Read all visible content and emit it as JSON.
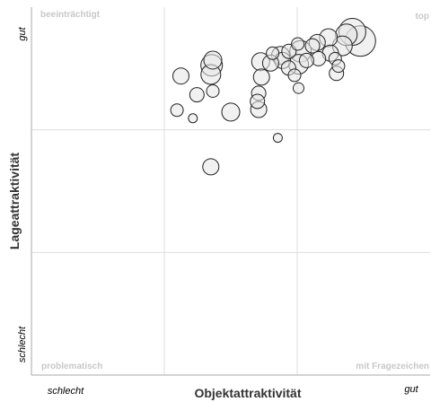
{
  "chart_data": {
    "type": "scatter",
    "title": "",
    "xlabel": "Objektattraktivität",
    "ylabel": "Lageattraktivität",
    "x_low_label": "schlecht",
    "x_high_label": "gut",
    "y_low_label": "schlecht",
    "y_high_label": "gut",
    "xlim": [
      0,
      100
    ],
    "ylim": [
      0,
      100
    ],
    "grid": true,
    "quadrant_labels": {
      "top_left": "beeinträchtigt",
      "top_right": "top",
      "bottom_left": "problematisch",
      "bottom_right": "mit Fragezeichen"
    },
    "colors": {
      "marker_fill": "#e6e6e6",
      "marker_stroke": "#222222",
      "grid": "#dddddd",
      "quadrant_text": "#c8c8c8"
    },
    "series": [
      {
        "points": [
          {
            "x": 80.5,
            "y": 93.3,
            "size": 15
          },
          {
            "x": 82.5,
            "y": 90.8,
            "size": 17
          },
          {
            "x": 79.0,
            "y": 92.5,
            "size": 12
          },
          {
            "x": 78.0,
            "y": 89.5,
            "size": 11
          },
          {
            "x": 74.5,
            "y": 91.7,
            "size": 10
          },
          {
            "x": 71.7,
            "y": 90.4,
            "size": 9
          },
          {
            "x": 70.5,
            "y": 89.5,
            "size": 8
          },
          {
            "x": 67.5,
            "y": 88.0,
            "size": 12
          },
          {
            "x": 66.8,
            "y": 90.0,
            "size": 7
          },
          {
            "x": 64.6,
            "y": 88.0,
            "size": 8
          },
          {
            "x": 62.5,
            "y": 86.9,
            "size": 10
          },
          {
            "x": 60.5,
            "y": 87.5,
            "size": 7
          },
          {
            "x": 75.0,
            "y": 87.5,
            "size": 9
          },
          {
            "x": 72.0,
            "y": 86.0,
            "size": 8
          },
          {
            "x": 76.2,
            "y": 86.0,
            "size": 7
          },
          {
            "x": 69.0,
            "y": 85.5,
            "size": 8
          },
          {
            "x": 63.0,
            "y": 85.5,
            "size": 9
          },
          {
            "x": 67.0,
            "y": 84.5,
            "size": 11
          },
          {
            "x": 57.5,
            "y": 85.2,
            "size": 10
          },
          {
            "x": 76.5,
            "y": 82.0,
            "size": 8
          },
          {
            "x": 77.0,
            "y": 84.0,
            "size": 7
          },
          {
            "x": 60.0,
            "y": 84.8,
            "size": 9
          },
          {
            "x": 45.5,
            "y": 85.6,
            "size": 10
          },
          {
            "x": 45.2,
            "y": 84.2,
            "size": 12
          },
          {
            "x": 37.5,
            "y": 81.3,
            "size": 9
          },
          {
            "x": 45.0,
            "y": 81.7,
            "size": 11
          },
          {
            "x": 64.5,
            "y": 83.5,
            "size": 8
          },
          {
            "x": 57.7,
            "y": 81.0,
            "size": 9
          },
          {
            "x": 66.0,
            "y": 81.5,
            "size": 7
          },
          {
            "x": 57.0,
            "y": 76.6,
            "size": 8
          },
          {
            "x": 67.0,
            "y": 78.0,
            "size": 6
          },
          {
            "x": 41.5,
            "y": 76.2,
            "size": 8
          },
          {
            "x": 45.5,
            "y": 77.2,
            "size": 7
          },
          {
            "x": 56.7,
            "y": 74.4,
            "size": 8
          },
          {
            "x": 57.0,
            "y": 72.2,
            "size": 9
          },
          {
            "x": 36.5,
            "y": 72.0,
            "size": 7
          },
          {
            "x": 40.5,
            "y": 69.8,
            "size": 5
          },
          {
            "x": 50.0,
            "y": 71.5,
            "size": 10
          },
          {
            "x": 61.8,
            "y": 64.5,
            "size": 5
          },
          {
            "x": 45.0,
            "y": 56.6,
            "size": 9
          }
        ]
      }
    ]
  }
}
